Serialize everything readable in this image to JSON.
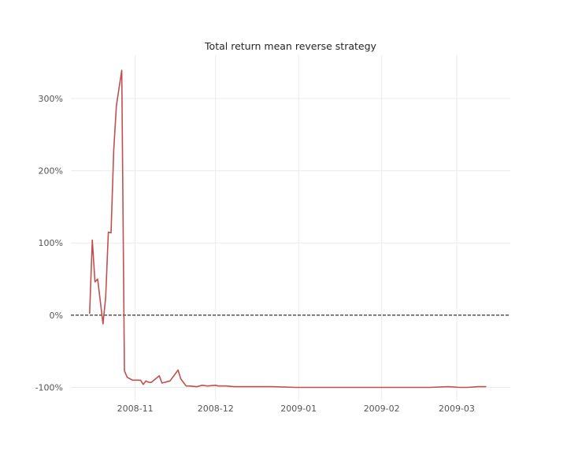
{
  "chart_data": {
    "type": "line",
    "title": "Total return mean reverse strategy",
    "xlabel": "",
    "ylabel": "",
    "grid": true,
    "legend": "none",
    "colors": {
      "line": "#c0504d",
      "grid": "#ebebeb",
      "zero_line": "#000000",
      "text": "#555555",
      "title": "#262626"
    },
    "x_ticks": [
      {
        "label": "2008-11",
        "date": "2008-11-01"
      },
      {
        "label": "2008-12",
        "date": "2008-12-01"
      },
      {
        "label": "2009-01",
        "date": "2009-01-01"
      },
      {
        "label": "2009-02",
        "date": "2009-02-01"
      },
      {
        "label": "2009-03",
        "date": "2009-03-01"
      }
    ],
    "y_ticks": [
      {
        "label": "300%",
        "value": 300
      },
      {
        "label": "200%",
        "value": 200
      },
      {
        "label": "100%",
        "value": 100
      },
      {
        "label": "0%",
        "value": 0
      },
      {
        "label": "-100%",
        "value": -100
      }
    ],
    "xlim": [
      "2008-10-08",
      "2009-03-21"
    ],
    "ylim": [
      -118,
      360
    ],
    "reference_line": {
      "y": 0,
      "style": "dashed"
    },
    "series": [
      {
        "x": [
          "2008-10-15",
          "2008-10-16",
          "2008-10-17",
          "2008-10-18",
          "2008-10-20",
          "2008-10-21",
          "2008-10-22",
          "2008-10-23",
          "2008-10-24",
          "2008-10-25",
          "2008-10-27",
          "2008-10-28",
          "2008-10-29",
          "2008-10-30",
          "2008-10-31",
          "2008-11-03",
          "2008-11-04",
          "2008-11-05",
          "2008-11-06",
          "2008-11-07",
          "2008-11-10",
          "2008-11-11",
          "2008-11-12",
          "2008-11-13",
          "2008-11-14",
          "2008-11-17",
          "2008-11-18",
          "2008-11-19",
          "2008-11-20",
          "2008-11-21",
          "2008-11-24",
          "2008-11-25",
          "2008-11-26",
          "2008-11-28",
          "2008-12-01",
          "2008-12-02",
          "2008-12-03",
          "2008-12-05",
          "2008-12-08",
          "2008-12-10",
          "2008-12-15",
          "2008-12-22",
          "2008-12-31",
          "2009-01-08",
          "2009-01-15",
          "2009-01-22",
          "2009-01-29",
          "2009-02-05",
          "2009-02-12",
          "2009-02-19",
          "2009-02-26",
          "2009-03-02",
          "2009-03-05",
          "2009-03-09",
          "2009-03-12"
        ],
        "values": [
          2,
          104,
          46,
          50,
          -12,
          25,
          115,
          114,
          228,
          290,
          339,
          -77,
          -86,
          -88,
          -90,
          -90,
          -96,
          -91,
          -93,
          -93,
          -84,
          -94,
          -93,
          -92,
          -91,
          -76,
          -88,
          -93,
          -98,
          -98,
          -99,
          -98,
          -97,
          -98,
          -97,
          -98,
          -98,
          -98,
          -99,
          -99,
          -99,
          -99,
          -100,
          -100,
          -100,
          -100,
          -100,
          -100,
          -100,
          -100,
          -99,
          -100,
          -100,
          -99,
          -99
        ]
      }
    ]
  }
}
